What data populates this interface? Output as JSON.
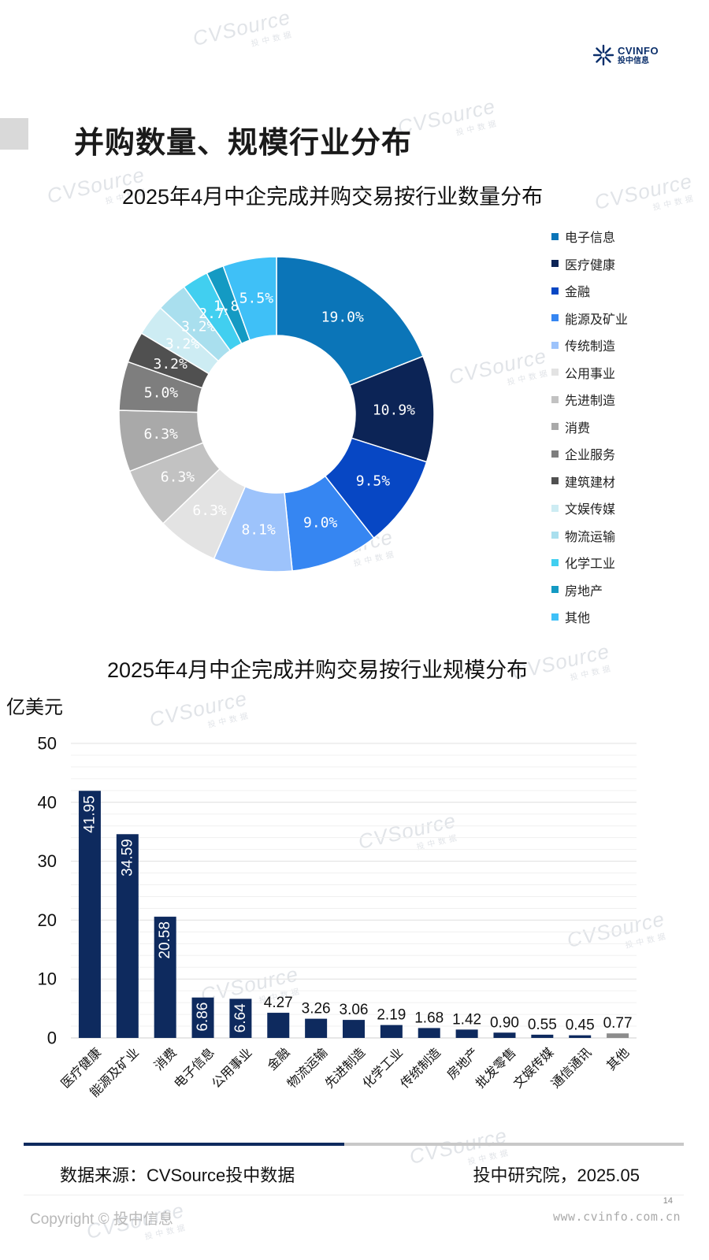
{
  "header": {
    "logo_text": "CVINFO",
    "logo_cn": "投中信息",
    "page_title": "并购数量、规模行业分布"
  },
  "watermark": {
    "main": "CVSource",
    "sub": "投中数据"
  },
  "colors": {
    "navy": "#0e2a5e",
    "bar": "#0e2a5e",
    "bar_other": "#8c8c8c",
    "grid": "#e6e6e6"
  },
  "chart_data": [
    {
      "type": "pie",
      "donut": true,
      "title": "2025年4月中企完成并购交易按行业数量分布",
      "legend_position": "right",
      "categories": [
        "电子信息",
        "医疗健康",
        "金融",
        "能源及矿业",
        "传统制造",
        "公用事业",
        "先进制造",
        "消费",
        "企业服务",
        "建筑建材",
        "文娱传媒",
        "物流运输",
        "化学工业",
        "房地产",
        "其他"
      ],
      "values": [
        19.0,
        10.9,
        9.5,
        9.0,
        8.1,
        6.3,
        6.3,
        6.3,
        5.0,
        3.2,
        3.2,
        3.2,
        2.7,
        1.8,
        5.5
      ],
      "labels": [
        "19.0%",
        "10.9%",
        "9.5%",
        "9.0%",
        "8.1%",
        "6.3%",
        "6.3%",
        "6.3%",
        "5.0%",
        "3.2%",
        "3.2%",
        "3.2%",
        "2.7%",
        "1.8%",
        "5.5%"
      ],
      "colors": [
        "#0b75b8",
        "#0c2456",
        "#0747c4",
        "#3686f2",
        "#9dc3fb",
        "#e3e3e3",
        "#c2c2c2",
        "#a9a9a9",
        "#7e7e7e",
        "#505050",
        "#cdecf3",
        "#a9dfee",
        "#41cff0",
        "#149ac3",
        "#3fc0f7"
      ]
    },
    {
      "type": "bar",
      "title": "2025年4月中企完成并购交易按行业规模分布",
      "ylabel": "亿美元",
      "xlabel": "",
      "ylim": [
        0,
        50
      ],
      "yticks": [
        0,
        10,
        20,
        30,
        40,
        50
      ],
      "grid": true,
      "categories": [
        "医疗健康",
        "能源及矿业",
        "消费",
        "电子信息",
        "公用事业",
        "金融",
        "物流运输",
        "先进制造",
        "化学工业",
        "传统制造",
        "房地产",
        "批发零售",
        "文娱传媒",
        "通信通讯",
        "其他"
      ],
      "values": [
        41.95,
        34.59,
        20.58,
        6.86,
        6.64,
        4.27,
        3.26,
        3.06,
        2.19,
        1.68,
        1.42,
        0.9,
        0.55,
        0.45,
        0.77
      ],
      "labels": [
        "41.95",
        "34.59",
        "20.58",
        "6.86",
        "6.64",
        "4.27",
        "3.26",
        "3.06",
        "2.19",
        "1.68",
        "1.42",
        "0.90",
        "0.55",
        "0.45",
        "0.77"
      ]
    }
  ],
  "footer": {
    "source": "数据来源：CVSource投中数据",
    "org_date": "投中研究院，2025.05",
    "progress": 0.486,
    "copyright": "Copyright © 投中信息",
    "page_number": "14",
    "url": "www.cvinfo.com.cn"
  }
}
